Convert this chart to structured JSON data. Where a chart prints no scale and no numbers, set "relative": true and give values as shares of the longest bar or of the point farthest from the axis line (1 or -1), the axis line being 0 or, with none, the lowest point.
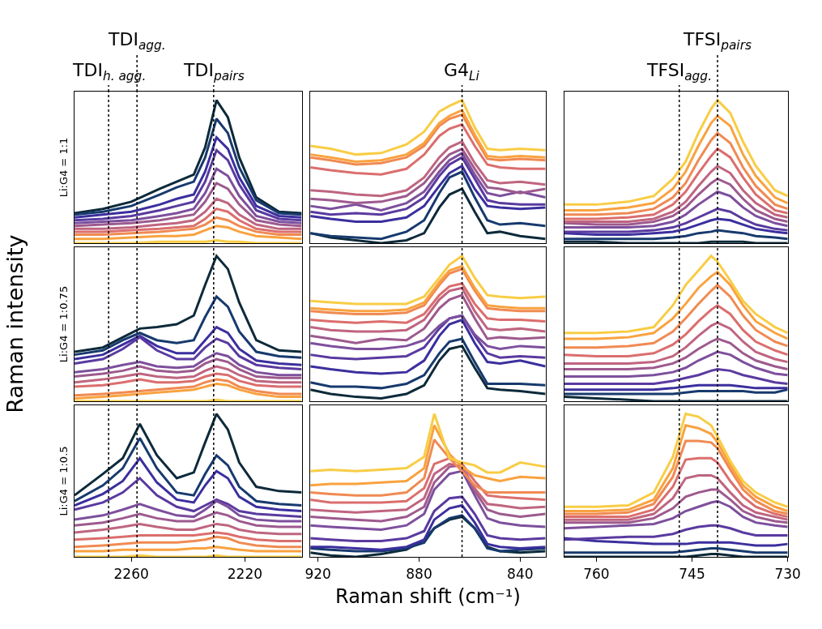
{
  "chart_data": [
    {
      "type": "line",
      "relative": true,
      "ylabel": "Li:G4 = 1:1",
      "tick_labels": false,
      "xlim": [
        2280,
        2200
      ],
      "x": [
        2280,
        2270,
        2260,
        2250,
        2244,
        2238,
        2234,
        2230,
        2226,
        2222,
        2216,
        2208,
        2200
      ],
      "ref_lines": [
        {
          "axis": "x",
          "value": 2268,
          "label": "TDI$_{h. agg.}$",
          "line_style": "dotted",
          "color": "#000000"
        },
        {
          "axis": "x",
          "value": 2258,
          "label": "TDI$_{agg.}$",
          "line_style": "dotted",
          "color": "#000000"
        },
        {
          "axis": "x",
          "value": 2231,
          "label": "TDI$_{pairs}$",
          "line_style": "dotted",
          "color": "#000000"
        }
      ],
      "series": [
        {
          "color": "#0d2a3a",
          "values": [
            0.21,
            0.24,
            0.29,
            0.38,
            0.43,
            0.48,
            0.67,
            1.0,
            0.88,
            0.6,
            0.32,
            0.22,
            0.21
          ]
        },
        {
          "color": "#173a6e",
          "values": [
            0.2,
            0.22,
            0.26,
            0.34,
            0.39,
            0.43,
            0.6,
            0.87,
            0.77,
            0.53,
            0.3,
            0.21,
            0.2
          ]
        },
        {
          "color": "#3b2f9e",
          "values": [
            0.18,
            0.2,
            0.22,
            0.27,
            0.31,
            0.34,
            0.5,
            0.74,
            0.66,
            0.46,
            0.26,
            0.19,
            0.18
          ]
        },
        {
          "color": "#5a3aa0",
          "values": [
            0.16,
            0.17,
            0.19,
            0.23,
            0.26,
            0.29,
            0.43,
            0.65,
            0.58,
            0.41,
            0.23,
            0.17,
            0.16
          ]
        },
        {
          "color": "#7d4f9d",
          "values": [
            0.14,
            0.15,
            0.16,
            0.19,
            0.21,
            0.24,
            0.35,
            0.52,
            0.47,
            0.33,
            0.19,
            0.15,
            0.14
          ]
        },
        {
          "color": "#9d5a8e",
          "values": [
            0.12,
            0.13,
            0.14,
            0.16,
            0.18,
            0.2,
            0.29,
            0.42,
            0.38,
            0.27,
            0.16,
            0.13,
            0.12
          ]
        },
        {
          "color": "#bf6580",
          "values": [
            0.1,
            0.1,
            0.11,
            0.13,
            0.14,
            0.16,
            0.22,
            0.31,
            0.28,
            0.2,
            0.13,
            0.1,
            0.1
          ]
        },
        {
          "color": "#db6e6e",
          "values": [
            0.08,
            0.08,
            0.09,
            0.1,
            0.11,
            0.12,
            0.17,
            0.24,
            0.22,
            0.16,
            0.1,
            0.08,
            0.08
          ]
        },
        {
          "color": "#f08a52",
          "values": [
            0.06,
            0.06,
            0.07,
            0.08,
            0.09,
            0.1,
            0.13,
            0.18,
            0.16,
            0.12,
            0.08,
            0.06,
            0.06
          ]
        },
        {
          "color": "#f9a23f",
          "values": [
            0.03,
            0.03,
            0.04,
            0.05,
            0.05,
            0.06,
            0.09,
            0.12,
            0.11,
            0.08,
            0.05,
            0.04,
            0.03
          ]
        },
        {
          "color": "#f8cd45",
          "values": [
            0,
            0,
            0,
            0.01,
            0.01,
            0.01,
            0.01,
            0.02,
            0.01,
            0.01,
            0,
            0,
            0
          ]
        }
      ]
    },
    {
      "type": "line",
      "relative": true,
      "tick_labels": false,
      "xlim": [
        923,
        830
      ],
      "x": [
        923,
        915,
        905,
        895,
        885,
        878,
        872,
        868,
        863,
        858,
        853,
        848,
        840,
        830
      ],
      "ref_lines": [
        {
          "axis": "x",
          "value": 863,
          "label": "G4$_{Li}$",
          "line_style": "dotted",
          "color": "#000000"
        }
      ],
      "series": [
        {
          "color": "#0d2a3a",
          "values": [
            0.07,
            0.04,
            0.02,
            0,
            0.02,
            0.07,
            0.25,
            0.34,
            0.38,
            0.22,
            0.07,
            0.08,
            0.05,
            0.03
          ]
        },
        {
          "color": "#173a6e",
          "values": [
            0.07,
            0.05,
            0.04,
            0.03,
            0.08,
            0.16,
            0.35,
            0.46,
            0.5,
            0.32,
            0.16,
            0.13,
            0.14,
            0.12
          ]
        },
        {
          "color": "#3b2f9e",
          "values": [
            0.19,
            0.17,
            0.15,
            0.15,
            0.18,
            0.26,
            0.4,
            0.49,
            0.54,
            0.38,
            0.26,
            0.25,
            0.24,
            0.25
          ]
        },
        {
          "color": "#5a3aa0",
          "values": [
            0.22,
            0.2,
            0.21,
            0.2,
            0.24,
            0.32,
            0.47,
            0.55,
            0.6,
            0.45,
            0.3,
            0.28,
            0.27,
            0.27
          ]
        },
        {
          "color": "#7d4f9d",
          "values": [
            0.26,
            0.24,
            0.27,
            0.23,
            0.28,
            0.36,
            0.5,
            0.58,
            0.63,
            0.48,
            0.35,
            0.33,
            0.36,
            0.32
          ]
        },
        {
          "color": "#9d5a8e",
          "values": [
            0.31,
            0.3,
            0.28,
            0.29,
            0.33,
            0.42,
            0.55,
            0.62,
            0.66,
            0.52,
            0.39,
            0.38,
            0.35,
            0.38
          ]
        },
        {
          "color": "#bf6580",
          "values": [
            0.37,
            0.36,
            0.34,
            0.33,
            0.37,
            0.46,
            0.6,
            0.67,
            0.71,
            0.56,
            0.44,
            0.42,
            0.43,
            0.41
          ]
        },
        {
          "color": "#db6e6e",
          "values": [
            0.53,
            0.51,
            0.49,
            0.48,
            0.52,
            0.62,
            0.75,
            0.8,
            0.83,
            0.68,
            0.55,
            0.53,
            0.52,
            0.52
          ]
        },
        {
          "color": "#f08a52",
          "values": [
            0.6,
            0.58,
            0.55,
            0.56,
            0.6,
            0.68,
            0.82,
            0.87,
            0.9,
            0.74,
            0.59,
            0.58,
            0.59,
            0.58
          ]
        },
        {
          "color": "#f9a23f",
          "values": [
            0.62,
            0.6,
            0.57,
            0.58,
            0.62,
            0.7,
            0.84,
            0.89,
            0.93,
            0.76,
            0.61,
            0.6,
            0.61,
            0.6
          ]
        },
        {
          "color": "#f8cd45",
          "values": [
            0.68,
            0.66,
            0.62,
            0.63,
            0.69,
            0.78,
            0.92,
            0.96,
            1.0,
            0.81,
            0.66,
            0.65,
            0.66,
            0.65
          ]
        }
      ]
    },
    {
      "type": "line",
      "relative": true,
      "tick_labels": false,
      "xlim": [
        765,
        730
      ],
      "x": [
        765,
        760,
        755,
        751,
        748,
        746,
        744,
        742,
        741,
        739,
        737,
        735,
        732,
        730
      ],
      "ref_lines": [
        {
          "axis": "x",
          "value": 747,
          "label": "TFSI$_{agg.}$",
          "line_style": "dotted",
          "color": "#000000"
        },
        {
          "axis": "x",
          "value": 741,
          "label": "TFSI$_{pairs}$",
          "line_style": "dotted",
          "color": "#000000"
        }
      ],
      "series": [
        {
          "color": "#0d2a3a",
          "values": [
            0.01,
            0.01,
            0,
            0,
            0,
            0,
            0,
            0.01,
            0.01,
            0.01,
            0.01,
            0,
            0,
            0
          ]
        },
        {
          "color": "#173a6e",
          "values": [
            0.03,
            0.03,
            0.03,
            0.03,
            0.04,
            0.05,
            0.07,
            0.08,
            0.09,
            0.08,
            0.07,
            0.05,
            0.04,
            0.03
          ]
        },
        {
          "color": "#3b2f9e",
          "values": [
            0.07,
            0.06,
            0.06,
            0.07,
            0.08,
            0.1,
            0.13,
            0.16,
            0.17,
            0.16,
            0.13,
            0.1,
            0.08,
            0.07
          ]
        },
        {
          "color": "#5a3aa0",
          "values": [
            0.08,
            0.08,
            0.08,
            0.09,
            0.11,
            0.14,
            0.18,
            0.22,
            0.24,
            0.22,
            0.17,
            0.13,
            0.1,
            0.09
          ]
        },
        {
          "color": "#7d4f9d",
          "values": [
            0.11,
            0.11,
            0.11,
            0.12,
            0.15,
            0.2,
            0.27,
            0.33,
            0.36,
            0.33,
            0.25,
            0.19,
            0.14,
            0.12
          ]
        },
        {
          "color": "#9d5a8e",
          "values": [
            0.14,
            0.13,
            0.13,
            0.15,
            0.19,
            0.25,
            0.34,
            0.42,
            0.45,
            0.41,
            0.31,
            0.23,
            0.17,
            0.15
          ]
        },
        {
          "color": "#bf6580",
          "values": [
            0.15,
            0.15,
            0.15,
            0.17,
            0.22,
            0.29,
            0.4,
            0.5,
            0.54,
            0.49,
            0.37,
            0.28,
            0.2,
            0.18
          ]
        },
        {
          "color": "#db6e6e",
          "values": [
            0.17,
            0.17,
            0.18,
            0.2,
            0.27,
            0.36,
            0.49,
            0.61,
            0.66,
            0.6,
            0.46,
            0.34,
            0.23,
            0.21
          ]
        },
        {
          "color": "#f08a52",
          "values": [
            0.2,
            0.2,
            0.21,
            0.24,
            0.32,
            0.42,
            0.58,
            0.72,
            0.77,
            0.7,
            0.53,
            0.4,
            0.27,
            0.24
          ]
        },
        {
          "color": "#f9a23f",
          "values": [
            0.23,
            0.23,
            0.25,
            0.28,
            0.38,
            0.5,
            0.68,
            0.84,
            0.89,
            0.82,
            0.62,
            0.47,
            0.32,
            0.28
          ]
        },
        {
          "color": "#f8cd45",
          "values": [
            0.27,
            0.27,
            0.29,
            0.33,
            0.45,
            0.57,
            0.77,
            0.94,
            1.0,
            0.91,
            0.71,
            0.54,
            0.37,
            0.33
          ]
        }
      ]
    },
    {
      "type": "line",
      "relative": true,
      "ylabel": "Li:G4 = 1:0.75",
      "tick_labels": false,
      "xlim": [
        2280,
        2200
      ],
      "annotations": [
        "Raman intensity"
      ],
      "x": [
        2280,
        2270,
        2263,
        2257,
        2251,
        2244,
        2238,
        2234,
        2230,
        2226,
        2222,
        2216,
        2208,
        2200
      ],
      "ref_lines": [
        {
          "axis": "x",
          "value": 2268,
          "line_style": "dotted",
          "color": "#000000"
        },
        {
          "axis": "x",
          "value": 2258,
          "line_style": "dotted",
          "color": "#000000"
        },
        {
          "axis": "x",
          "value": 2231,
          "line_style": "dotted",
          "color": "#000000"
        }
      ],
      "series": [
        {
          "color": "#0d2a3a",
          "values": [
            0.34,
            0.37,
            0.44,
            0.5,
            0.51,
            0.53,
            0.59,
            0.8,
            1.0,
            0.91,
            0.68,
            0.42,
            0.35,
            0.34
          ]
        },
        {
          "color": "#173a6e",
          "values": [
            0.32,
            0.35,
            0.42,
            0.47,
            0.42,
            0.4,
            0.42,
            0.58,
            0.72,
            0.65,
            0.48,
            0.34,
            0.31,
            0.3
          ]
        },
        {
          "color": "#3b2f9e",
          "values": [
            0.29,
            0.32,
            0.39,
            0.45,
            0.38,
            0.33,
            0.33,
            0.42,
            0.51,
            0.47,
            0.36,
            0.28,
            0.26,
            0.25
          ]
        },
        {
          "color": "#5a3aa0",
          "values": [
            0.26,
            0.29,
            0.36,
            0.44,
            0.35,
            0.29,
            0.29,
            0.37,
            0.43,
            0.4,
            0.31,
            0.25,
            0.23,
            0.22
          ]
        },
        {
          "color": "#7d4f9d",
          "values": [
            0.2,
            0.22,
            0.25,
            0.27,
            0.24,
            0.23,
            0.24,
            0.29,
            0.33,
            0.31,
            0.25,
            0.2,
            0.18,
            0.18
          ]
        },
        {
          "color": "#9d5a8e",
          "values": [
            0.17,
            0.19,
            0.21,
            0.24,
            0.21,
            0.2,
            0.21,
            0.26,
            0.29,
            0.27,
            0.22,
            0.17,
            0.16,
            0.16
          ]
        },
        {
          "color": "#bf6580",
          "values": [
            0.13,
            0.15,
            0.17,
            0.19,
            0.17,
            0.16,
            0.17,
            0.21,
            0.24,
            0.22,
            0.18,
            0.14,
            0.13,
            0.13
          ]
        },
        {
          "color": "#db6e6e",
          "values": [
            0.1,
            0.11,
            0.13,
            0.15,
            0.13,
            0.13,
            0.14,
            0.17,
            0.19,
            0.18,
            0.14,
            0.11,
            0.1,
            0.1
          ]
        },
        {
          "color": "#f08a52",
          "values": [
            0.04,
            0.05,
            0.06,
            0.07,
            0.08,
            0.09,
            0.1,
            0.13,
            0.15,
            0.14,
            0.1,
            0.07,
            0.05,
            0.05
          ]
        },
        {
          "color": "#f9a23f",
          "values": [
            0.02,
            0.03,
            0.04,
            0.05,
            0.06,
            0.07,
            0.08,
            0.1,
            0.12,
            0.11,
            0.08,
            0.05,
            0.03,
            0.03
          ]
        },
        {
          "color": "#f8cd45",
          "values": [
            0,
            0,
            0,
            0,
            0,
            0,
            0,
            0,
            0.01,
            0,
            0,
            0,
            0,
            0
          ]
        }
      ]
    },
    {
      "type": "line",
      "relative": true,
      "tick_labels": false,
      "xlim": [
        923,
        830
      ],
      "x": [
        923,
        915,
        905,
        895,
        885,
        878,
        872,
        868,
        863,
        858,
        853,
        848,
        840,
        830
      ],
      "ref_lines": [
        {
          "axis": "x",
          "value": 863,
          "line_style": "dotted",
          "color": "#000000"
        }
      ],
      "series": [
        {
          "color": "#0d2a3a",
          "values": [
            0.08,
            0.05,
            0.03,
            0.02,
            0.05,
            0.11,
            0.28,
            0.36,
            0.38,
            0.23,
            0.09,
            0.08,
            0.07,
            0.05
          ]
        },
        {
          "color": "#173a6e",
          "values": [
            0.13,
            0.1,
            0.1,
            0.09,
            0.12,
            0.18,
            0.33,
            0.41,
            0.43,
            0.27,
            0.12,
            0.12,
            0.12,
            0.11
          ]
        },
        {
          "color": "#3b2f9e",
          "values": [
            0.24,
            0.22,
            0.2,
            0.19,
            0.2,
            0.28,
            0.45,
            0.53,
            0.56,
            0.4,
            0.27,
            0.26,
            0.28,
            0.24
          ]
        },
        {
          "color": "#5a3aa0",
          "values": [
            0.32,
            0.3,
            0.29,
            0.3,
            0.31,
            0.37,
            0.5,
            0.57,
            0.59,
            0.45,
            0.33,
            0.3,
            0.31,
            0.3
          ]
        },
        {
          "color": "#7d4f9d",
          "values": [
            0.4,
            0.38,
            0.36,
            0.36,
            0.38,
            0.42,
            0.52,
            0.57,
            0.59,
            0.46,
            0.38,
            0.36,
            0.38,
            0.37
          ]
        },
        {
          "color": "#9d5a8e",
          "values": [
            0.45,
            0.43,
            0.4,
            0.43,
            0.42,
            0.5,
            0.64,
            0.7,
            0.73,
            0.57,
            0.43,
            0.44,
            0.43,
            0.44
          ]
        },
        {
          "color": "#bf6580",
          "values": [
            0.51,
            0.49,
            0.48,
            0.48,
            0.49,
            0.56,
            0.7,
            0.76,
            0.78,
            0.62,
            0.5,
            0.49,
            0.5,
            0.48
          ]
        },
        {
          "color": "#db6e6e",
          "values": [
            0.56,
            0.55,
            0.54,
            0.55,
            0.54,
            0.6,
            0.73,
            0.79,
            0.81,
            0.67,
            0.57,
            0.56,
            0.56,
            0.55
          ]
        },
        {
          "color": "#f08a52",
          "values": [
            0.62,
            0.61,
            0.6,
            0.6,
            0.61,
            0.66,
            0.8,
            0.88,
            0.91,
            0.76,
            0.64,
            0.63,
            0.62,
            0.62
          ]
        },
        {
          "color": "#f9a23f",
          "values": [
            0.64,
            0.63,
            0.62,
            0.62,
            0.63,
            0.68,
            0.82,
            0.9,
            0.93,
            0.78,
            0.66,
            0.65,
            0.64,
            0.64
          ]
        },
        {
          "color": "#f8cd45",
          "values": [
            0.69,
            0.68,
            0.67,
            0.67,
            0.67,
            0.72,
            0.85,
            0.94,
            1.0,
            0.85,
            0.73,
            0.72,
            0.71,
            0.72
          ]
        }
      ]
    },
    {
      "type": "line",
      "relative": true,
      "tick_labels": false,
      "xlim": [
        765,
        730
      ],
      "x": [
        765,
        760,
        755,
        751,
        748,
        746,
        744,
        742,
        741,
        739,
        737,
        735,
        732,
        730
      ],
      "ref_lines": [
        {
          "axis": "x",
          "value": 747,
          "line_style": "dotted",
          "color": "#000000"
        },
        {
          "axis": "x",
          "value": 741,
          "line_style": "dotted",
          "color": "#000000"
        }
      ],
      "series": [
        {
          "color": "#0d2a3a",
          "values": [
            0.03,
            0.02,
            0.01,
            0,
            0,
            0,
            0,
            0,
            0,
            0,
            0,
            0,
            0,
            0
          ]
        },
        {
          "color": "#173a6e",
          "values": [
            0.05,
            0.05,
            0.05,
            0.05,
            0.05,
            0.06,
            0.07,
            0.07,
            0.07,
            0.07,
            0.07,
            0.06,
            0.06,
            0.08
          ]
        },
        {
          "color": "#3b2f9e",
          "values": [
            0.08,
            0.08,
            0.08,
            0.08,
            0.09,
            0.1,
            0.11,
            0.11,
            0.11,
            0.11,
            0.1,
            0.09,
            0.09,
            0.09
          ]
        },
        {
          "color": "#5a3aa0",
          "values": [
            0.12,
            0.12,
            0.12,
            0.12,
            0.14,
            0.16,
            0.18,
            0.21,
            0.22,
            0.21,
            0.18,
            0.16,
            0.13,
            0.12
          ]
        },
        {
          "color": "#7d4f9d",
          "values": [
            0.17,
            0.17,
            0.17,
            0.18,
            0.2,
            0.23,
            0.28,
            0.32,
            0.34,
            0.32,
            0.27,
            0.23,
            0.19,
            0.18
          ]
        },
        {
          "color": "#9d5a8e",
          "values": [
            0.22,
            0.22,
            0.22,
            0.23,
            0.26,
            0.3,
            0.36,
            0.41,
            0.43,
            0.4,
            0.33,
            0.28,
            0.24,
            0.22
          ]
        },
        {
          "color": "#bf6580",
          "values": [
            0.26,
            0.26,
            0.26,
            0.27,
            0.31,
            0.37,
            0.45,
            0.52,
            0.54,
            0.5,
            0.41,
            0.34,
            0.29,
            0.27
          ]
        },
        {
          "color": "#db6e6e",
          "values": [
            0.32,
            0.31,
            0.31,
            0.33,
            0.39,
            0.46,
            0.55,
            0.63,
            0.66,
            0.6,
            0.49,
            0.41,
            0.35,
            0.32
          ]
        },
        {
          "color": "#f08a52",
          "values": [
            0.37,
            0.37,
            0.38,
            0.4,
            0.48,
            0.57,
            0.67,
            0.76,
            0.8,
            0.72,
            0.59,
            0.49,
            0.41,
            0.38
          ]
        },
        {
          "color": "#f9a23f",
          "values": [
            0.43,
            0.43,
            0.44,
            0.47,
            0.57,
            0.67,
            0.78,
            0.86,
            0.89,
            0.8,
            0.66,
            0.55,
            0.47,
            0.43
          ]
        },
        {
          "color": "#f8cd45",
          "values": [
            0.47,
            0.47,
            0.48,
            0.51,
            0.66,
            0.8,
            0.9,
            1.0,
            0.96,
            0.83,
            0.69,
            0.6,
            0.51,
            0.47
          ]
        }
      ]
    },
    {
      "type": "line",
      "relative": true,
      "ylabel": "Li:G4 = 1:0.5",
      "tick_labels": "x",
      "xlim": [
        2280,
        2200
      ],
      "xticks": [
        2260,
        2220
      ],
      "x": [
        2280,
        2270,
        2263,
        2257,
        2251,
        2244,
        2238,
        2234,
        2230,
        2226,
        2222,
        2216,
        2208,
        2200
      ],
      "ref_lines": [
        {
          "axis": "x",
          "value": 2268,
          "line_style": "dotted",
          "color": "#000000"
        },
        {
          "axis": "x",
          "value": 2258,
          "line_style": "dotted",
          "color": "#000000"
        },
        {
          "axis": "x",
          "value": 2231,
          "line_style": "dotted",
          "color": "#000000"
        }
      ],
      "series": [
        {
          "color": "#0d2a3a",
          "values": [
            0.43,
            0.58,
            0.69,
            0.93,
            0.71,
            0.55,
            0.59,
            0.8,
            1.0,
            0.89,
            0.66,
            0.49,
            0.46,
            0.45
          ]
        },
        {
          "color": "#173a6e",
          "values": [
            0.39,
            0.5,
            0.62,
            0.83,
            0.62,
            0.45,
            0.43,
            0.58,
            0.71,
            0.64,
            0.49,
            0.39,
            0.37,
            0.36
          ]
        },
        {
          "color": "#3b2f9e",
          "values": [
            0.36,
            0.44,
            0.53,
            0.69,
            0.52,
            0.4,
            0.38,
            0.5,
            0.6,
            0.55,
            0.42,
            0.35,
            0.33,
            0.32
          ]
        },
        {
          "color": "#5a3aa0",
          "values": [
            0.33,
            0.38,
            0.45,
            0.55,
            0.43,
            0.35,
            0.32,
            0.36,
            0.4,
            0.37,
            0.32,
            0.3,
            0.29,
            0.28
          ]
        },
        {
          "color": "#7d4f9d",
          "values": [
            0.26,
            0.29,
            0.33,
            0.37,
            0.33,
            0.29,
            0.28,
            0.33,
            0.39,
            0.35,
            0.29,
            0.26,
            0.25,
            0.25
          ]
        },
        {
          "color": "#9d5a8e",
          "values": [
            0.22,
            0.24,
            0.27,
            0.3,
            0.27,
            0.25,
            0.25,
            0.28,
            0.31,
            0.29,
            0.25,
            0.22,
            0.21,
            0.21
          ]
        },
        {
          "color": "#bf6580",
          "values": [
            0.17,
            0.19,
            0.21,
            0.23,
            0.21,
            0.19,
            0.19,
            0.21,
            0.23,
            0.22,
            0.19,
            0.17,
            0.16,
            0.16
          ]
        },
        {
          "color": "#db6e6e",
          "values": [
            0.12,
            0.13,
            0.14,
            0.15,
            0.15,
            0.15,
            0.15,
            0.16,
            0.17,
            0.16,
            0.14,
            0.12,
            0.11,
            0.11
          ]
        },
        {
          "color": "#f08a52",
          "values": [
            0.07,
            0.08,
            0.09,
            0.1,
            0.1,
            0.1,
            0.11,
            0.12,
            0.14,
            0.13,
            0.1,
            0.08,
            0.07,
            0.07
          ]
        },
        {
          "color": "#f9a23f",
          "values": [
            0.04,
            0.04,
            0.05,
            0.05,
            0.05,
            0.05,
            0.06,
            0.06,
            0.07,
            0.06,
            0.05,
            0.04,
            0.04,
            0.04
          ]
        },
        {
          "color": "#f8cd45",
          "values": [
            0,
            0,
            0,
            0.01,
            0,
            0,
            0,
            0,
            0.01,
            0,
            0,
            0,
            0,
            0
          ]
        }
      ]
    },
    {
      "type": "line",
      "relative": true,
      "tick_labels": "x",
      "xlim": [
        923,
        830
      ],
      "xticks": [
        920,
        880,
        840
      ],
      "xlabel": "Raman shift (cm⁻¹)",
      "x": [
        923,
        915,
        905,
        895,
        885,
        878,
        874,
        868,
        863,
        858,
        853,
        848,
        840,
        830
      ],
      "ref_lines": [
        {
          "axis": "x",
          "value": 863,
          "line_style": "dotted",
          "color": "#000000"
        }
      ],
      "series": [
        {
          "color": "#0d2a3a",
          "values": [
            0.03,
            0.01,
            0,
            0.02,
            0.05,
            0.12,
            0.2,
            0.26,
            0.28,
            0.2,
            0.07,
            0.04,
            0.03,
            0.04
          ]
        },
        {
          "color": "#173a6e",
          "values": [
            0.06,
            0.05,
            0.04,
            0.04,
            0.06,
            0.1,
            0.2,
            0.27,
            0.29,
            0.2,
            0.06,
            0.04,
            0.05,
            0.06
          ]
        },
        {
          "color": "#3b2f9e",
          "values": [
            0.07,
            0.07,
            0.06,
            0.05,
            0.07,
            0.12,
            0.26,
            0.34,
            0.36,
            0.24,
            0.09,
            0.07,
            0.06,
            0.07
          ]
        },
        {
          "color": "#5a3aa0",
          "values": [
            0.13,
            0.12,
            0.11,
            0.11,
            0.13,
            0.18,
            0.32,
            0.41,
            0.42,
            0.3,
            0.15,
            0.13,
            0.12,
            0.13
          ]
        },
        {
          "color": "#7d4f9d",
          "values": [
            0.22,
            0.21,
            0.2,
            0.19,
            0.22,
            0.3,
            0.47,
            0.58,
            0.6,
            0.43,
            0.27,
            0.24,
            0.22,
            0.21
          ]
        },
        {
          "color": "#9d5a8e",
          "values": [
            0.28,
            0.27,
            0.26,
            0.25,
            0.28,
            0.35,
            0.52,
            0.63,
            0.64,
            0.46,
            0.33,
            0.3,
            0.28,
            0.3
          ]
        },
        {
          "color": "#bf6580",
          "values": [
            0.33,
            0.32,
            0.31,
            0.32,
            0.33,
            0.41,
            0.58,
            0.65,
            0.63,
            0.48,
            0.37,
            0.36,
            0.34,
            0.35
          ]
        },
        {
          "color": "#db6e6e",
          "values": [
            0.4,
            0.38,
            0.38,
            0.38,
            0.39,
            0.48,
            0.65,
            0.69,
            0.65,
            0.53,
            0.43,
            0.42,
            0.41,
            0.4
          ]
        },
        {
          "color": "#f08a52",
          "values": [
            0.45,
            0.44,
            0.43,
            0.43,
            0.45,
            0.55,
            0.82,
            0.69,
            0.6,
            0.5,
            0.45,
            0.45,
            0.45,
            0.45
          ]
        },
        {
          "color": "#f9a23f",
          "values": [
            0.5,
            0.51,
            0.51,
            0.52,
            0.53,
            0.62,
            0.92,
            0.72,
            0.63,
            0.57,
            0.55,
            0.53,
            0.56,
            0.55
          ]
        },
        {
          "color": "#f8cd45",
          "values": [
            0.6,
            0.61,
            0.6,
            0.61,
            0.62,
            0.7,
            1.0,
            0.69,
            0.66,
            0.64,
            0.59,
            0.59,
            0.66,
            0.63
          ]
        }
      ]
    },
    {
      "type": "line",
      "relative": true,
      "tick_labels": "x",
      "xlim": [
        765,
        730
      ],
      "xticks": [
        760,
        745,
        730
      ],
      "x": [
        765,
        760,
        755,
        751,
        748,
        746,
        744,
        742,
        741,
        739,
        737,
        735,
        732,
        730
      ],
      "ref_lines": [
        {
          "axis": "x",
          "value": 747,
          "line_style": "dotted",
          "color": "#000000"
        },
        {
          "axis": "x",
          "value": 741,
          "line_style": "dotted",
          "color": "#000000"
        }
      ],
      "series": [
        {
          "color": "#0d2a3a",
          "values": [
            0,
            0,
            0,
            0,
            0,
            0,
            0.01,
            0.02,
            0.02,
            0.01,
            0,
            0,
            0,
            0
          ]
        },
        {
          "color": "#173a6e",
          "values": [
            0.03,
            0.03,
            0.03,
            0.03,
            0.03,
            0.04,
            0.05,
            0.06,
            0.06,
            0.05,
            0.04,
            0.03,
            0.03,
            0.03
          ]
        },
        {
          "color": "#3b2f9e",
          "values": [
            0.13,
            0.11,
            0.1,
            0.09,
            0.09,
            0.09,
            0.1,
            0.1,
            0.1,
            0.1,
            0.09,
            0.08,
            0.08,
            0.09
          ]
        },
        {
          "color": "#5a3aa0",
          "values": [
            0.12,
            0.13,
            0.14,
            0.14,
            0.16,
            0.19,
            0.21,
            0.22,
            0.22,
            0.2,
            0.17,
            0.15,
            0.15,
            0.15
          ]
        },
        {
          "color": "#7d4f9d",
          "values": [
            0.2,
            0.21,
            0.22,
            0.23,
            0.27,
            0.32,
            0.35,
            0.38,
            0.39,
            0.35,
            0.28,
            0.24,
            0.22,
            0.21
          ]
        },
        {
          "color": "#9d5a8e",
          "values": [
            0.24,
            0.24,
            0.24,
            0.27,
            0.34,
            0.42,
            0.45,
            0.47,
            0.47,
            0.4,
            0.32,
            0.28,
            0.25,
            0.24
          ]
        },
        {
          "color": "#bf6580",
          "values": [
            0.26,
            0.26,
            0.26,
            0.3,
            0.41,
            0.55,
            0.57,
            0.57,
            0.55,
            0.45,
            0.36,
            0.31,
            0.28,
            0.26
          ]
        },
        {
          "color": "#db6e6e",
          "values": [
            0.28,
            0.28,
            0.28,
            0.33,
            0.49,
            0.68,
            0.69,
            0.69,
            0.66,
            0.53,
            0.42,
            0.35,
            0.3,
            0.28
          ]
        },
        {
          "color": "#f08a52",
          "values": [
            0.3,
            0.3,
            0.31,
            0.37,
            0.56,
            0.81,
            0.81,
            0.8,
            0.76,
            0.61,
            0.47,
            0.39,
            0.32,
            0.3
          ]
        },
        {
          "color": "#f9a23f",
          "values": [
            0.32,
            0.32,
            0.33,
            0.4,
            0.62,
            0.92,
            0.9,
            0.86,
            0.8,
            0.64,
            0.5,
            0.42,
            0.35,
            0.32
          ]
        },
        {
          "color": "#f8cd45",
          "values": [
            0.35,
            0.35,
            0.36,
            0.45,
            0.7,
            1.0,
            0.98,
            0.92,
            0.84,
            0.67,
            0.53,
            0.45,
            0.38,
            0.35
          ]
        }
      ]
    }
  ]
}
